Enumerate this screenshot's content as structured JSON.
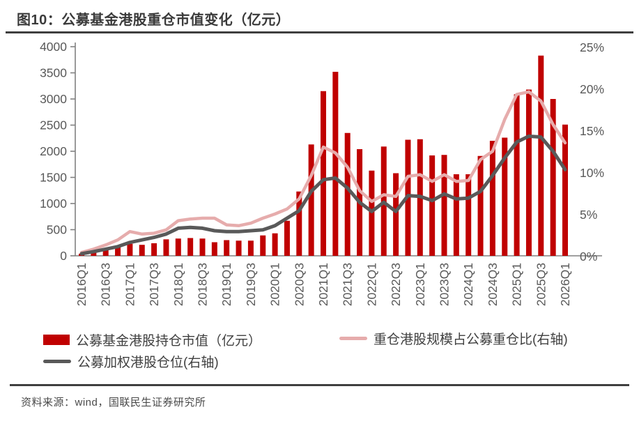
{
  "page": {
    "title": "图10：公募基金港股重仓市值变化（亿元）",
    "source": "资料来源：wind，国联民生证券研究所"
  },
  "colors": {
    "bar_red": "#c00000",
    "pink_line": "#e6acac",
    "gray_line": "#595959",
    "axis": "#808080",
    "tick_text": "#595959",
    "rule": "#3f3f3f"
  },
  "chart_data": {
    "type": "bar",
    "title": "图10：公募基金港股重仓市值变化（亿元）",
    "categories": [
      "2016Q1",
      "2016Q2",
      "2016Q3",
      "2016Q4",
      "2017Q1",
      "2017Q2",
      "2017Q3",
      "2017Q4",
      "2018Q1",
      "2018Q2",
      "2018Q3",
      "2018Q4",
      "2019Q1",
      "2019Q2",
      "2019Q3",
      "2019Q4",
      "2020Q1",
      "2020Q2",
      "2020Q3",
      "2020Q4",
      "2021Q1",
      "2021Q2",
      "2021Q3",
      "2021Q4",
      "2022Q1",
      "2022Q2",
      "2022Q3",
      "2022Q4",
      "2023Q1",
      "2023Q2",
      "2023Q3",
      "2023Q4",
      "2024Q1",
      "2024Q2",
      "2024Q3",
      "2024Q4",
      "2025Q1",
      "2025Q2",
      "2025Q3",
      "2025Q4",
      "2026Q1"
    ],
    "x_shown_tick_labels": [
      "2016Q1",
      "2016Q3",
      "2017Q1",
      "2017Q3",
      "2018Q1",
      "2018Q3",
      "2019Q1",
      "2019Q3",
      "2020Q1",
      "2020Q3",
      "2021Q1",
      "2021Q3",
      "2022Q1",
      "2022Q3",
      "2023Q1",
      "2023Q3",
      "2024Q1",
      "2024Q3",
      "2025Q1",
      "2025Q3",
      "2026Q1"
    ],
    "series": [
      {
        "name": "公募基金港股持仓市值（亿元）",
        "type": "bar",
        "axis": "left",
        "color": "#c00000",
        "values": [
          40,
          90,
          140,
          190,
          230,
          210,
          240,
          315,
          330,
          340,
          330,
          260,
          300,
          290,
          290,
          390,
          430,
          670,
          1230,
          2130,
          3150,
          3520,
          2350,
          2040,
          1630,
          2090,
          1580,
          2220,
          2230,
          1920,
          1930,
          1560,
          1560,
          1910,
          2200,
          2260,
          3090,
          3180,
          3830,
          3000,
          2510
        ]
      },
      {
        "name": "重仓港股规模占公募重仓比(右轴)",
        "type": "line",
        "axis": "right",
        "unit": "%",
        "color": "#e6acac",
        "values": [
          0.4,
          0.8,
          1.3,
          1.9,
          2.9,
          2.6,
          2.7,
          3.1,
          4.2,
          4.4,
          4.5,
          4.5,
          3.7,
          3.6,
          3.9,
          4.5,
          5.0,
          5.6,
          6.8,
          9.6,
          13.0,
          12.3,
          10.6,
          7.8,
          6.5,
          7.3,
          7.1,
          9.5,
          9.7,
          8.9,
          9.7,
          8.9,
          9.0,
          11.5,
          12.5,
          16.3,
          19.3,
          19.6,
          18.5,
          15.7,
          13.5
        ]
      },
      {
        "name": "公募加权港股仓位(右轴)",
        "type": "line",
        "axis": "right",
        "unit": "%",
        "color": "#595959",
        "values": [
          0.25,
          0.5,
          0.8,
          1.1,
          1.6,
          1.9,
          2.2,
          2.6,
          3.3,
          3.4,
          3.3,
          3.0,
          2.9,
          2.9,
          3.0,
          3.1,
          3.6,
          4.5,
          5.4,
          7.7,
          9.1,
          9.3,
          8.1,
          6.4,
          5.3,
          6.4,
          5.3,
          7.2,
          7.1,
          6.6,
          7.4,
          6.8,
          6.9,
          7.7,
          9.6,
          11.7,
          13.6,
          14.3,
          14.2,
          12.5,
          10.3
        ]
      }
    ],
    "left_axis": {
      "min": 0,
      "max": 4000,
      "step": 500,
      "ticks": [
        "0",
        "500",
        "1000",
        "1500",
        "2000",
        "2500",
        "3000",
        "3500",
        "4000"
      ]
    },
    "right_axis": {
      "min": 0,
      "max": 25,
      "step": 5,
      "ticks": [
        "0%",
        "5%",
        "10%",
        "15%",
        "20%",
        "25%"
      ]
    },
    "grid": false,
    "legend_position": "bottom",
    "legend": [
      {
        "label": "公募基金港股持仓市值（亿元）",
        "swatch": "bar",
        "color": "#c00000"
      },
      {
        "label": "重仓港股规模占公募重仓比(右轴)",
        "swatch": "line",
        "color": "#e6acac"
      },
      {
        "label": "公募加权港股仓位(右轴)",
        "swatch": "line",
        "color": "#595959"
      }
    ]
  }
}
